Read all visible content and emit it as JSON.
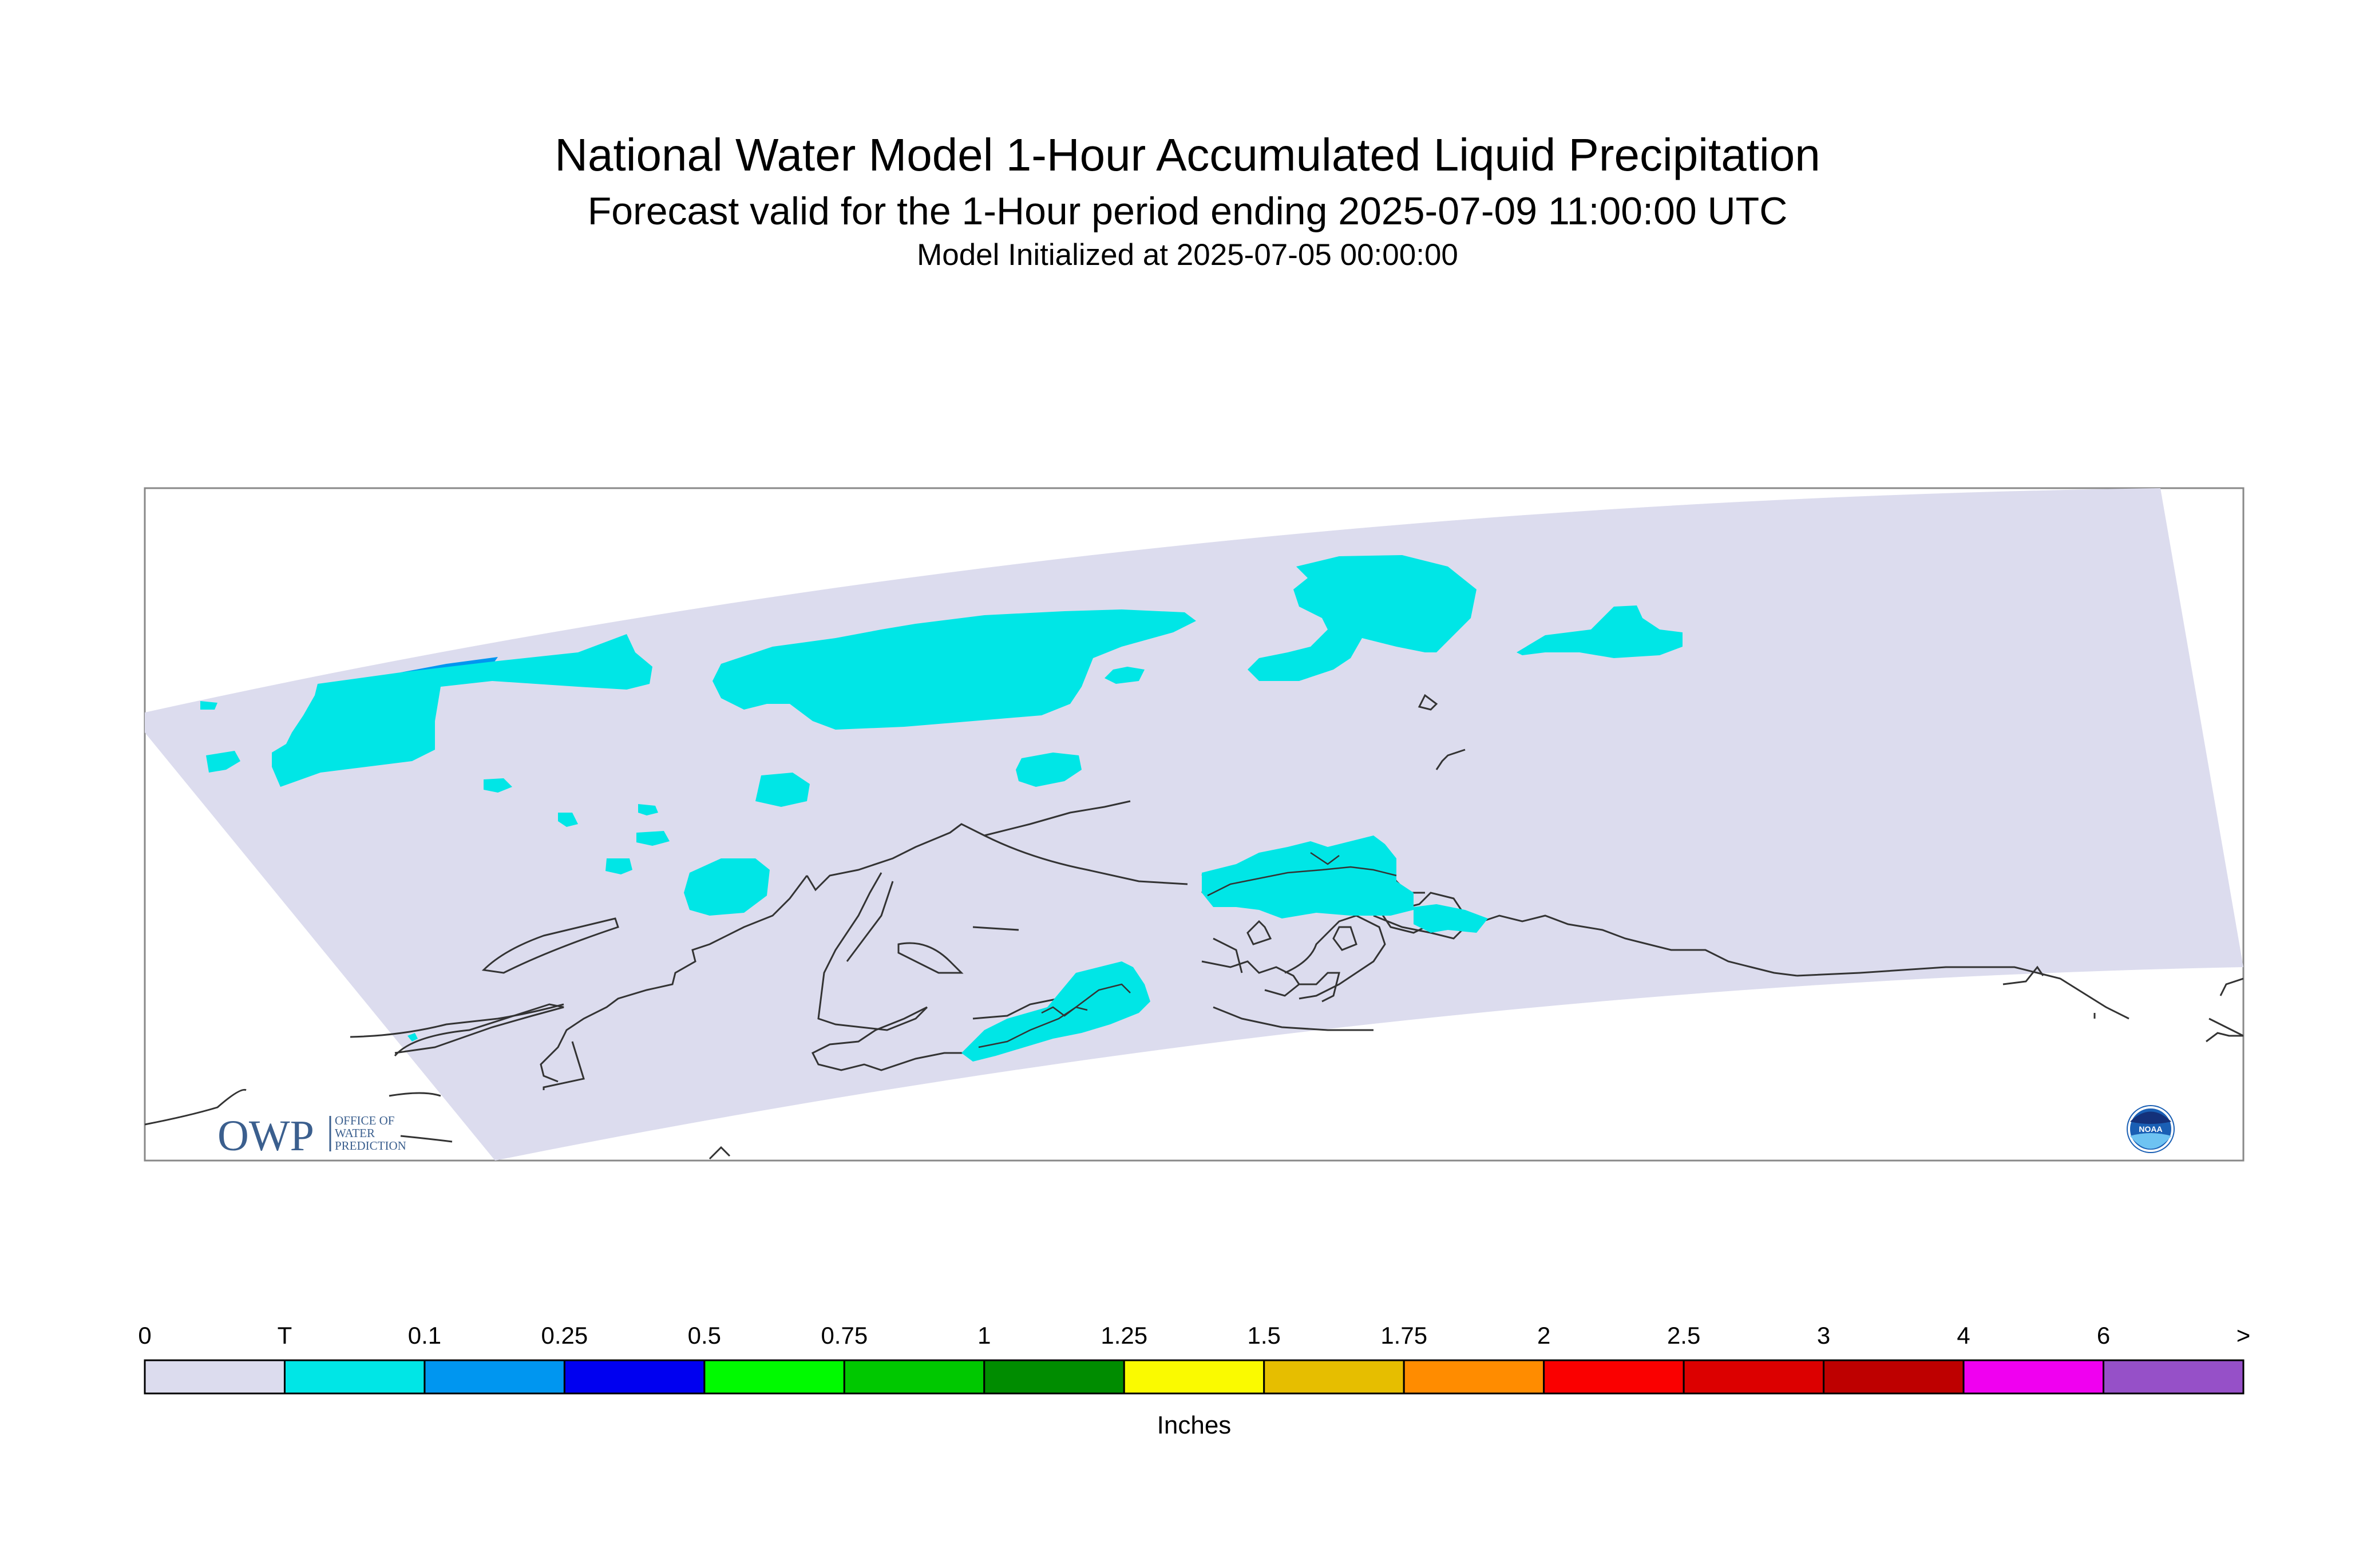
{
  "header": {
    "title": "National Water Model 1-Hour Accumulated Liquid Precipitation",
    "subtitle": "Forecast valid for the 1-Hour period ending 2025-07-09 11:00:00 UTC",
    "init": "Model Initialized at 2025-07-05 00:00:00"
  },
  "logos": {
    "owp_text": "OWP",
    "owp_line1": "OFFICE OF",
    "owp_line2": "WATER",
    "owp_line3": "PREDICTION",
    "noaa_text": "NOAA"
  },
  "map": {
    "region": "Alaska",
    "colors": {
      "domain_fill": "#dcdcee",
      "precip_trace": "#00e6e6",
      "precip_01": "#0096f0",
      "coastline": "#333333"
    }
  },
  "legend": {
    "units": "Inches",
    "labels": [
      "0",
      "T",
      "0.1",
      "0.25",
      "0.5",
      "0.75",
      "1",
      "1.25",
      "1.5",
      "1.75",
      "2",
      "2.5",
      "3",
      "4",
      "6",
      ">"
    ],
    "colors": [
      "#dcdcee",
      "#00e6e6",
      "#0096f0",
      "#0000f0",
      "#00fa00",
      "#00c800",
      "#008c00",
      "#fafa00",
      "#e6be00",
      "#ff8c00",
      "#fa0000",
      "#dc0000",
      "#be0000",
      "#f000f0",
      "#9650c8"
    ]
  }
}
